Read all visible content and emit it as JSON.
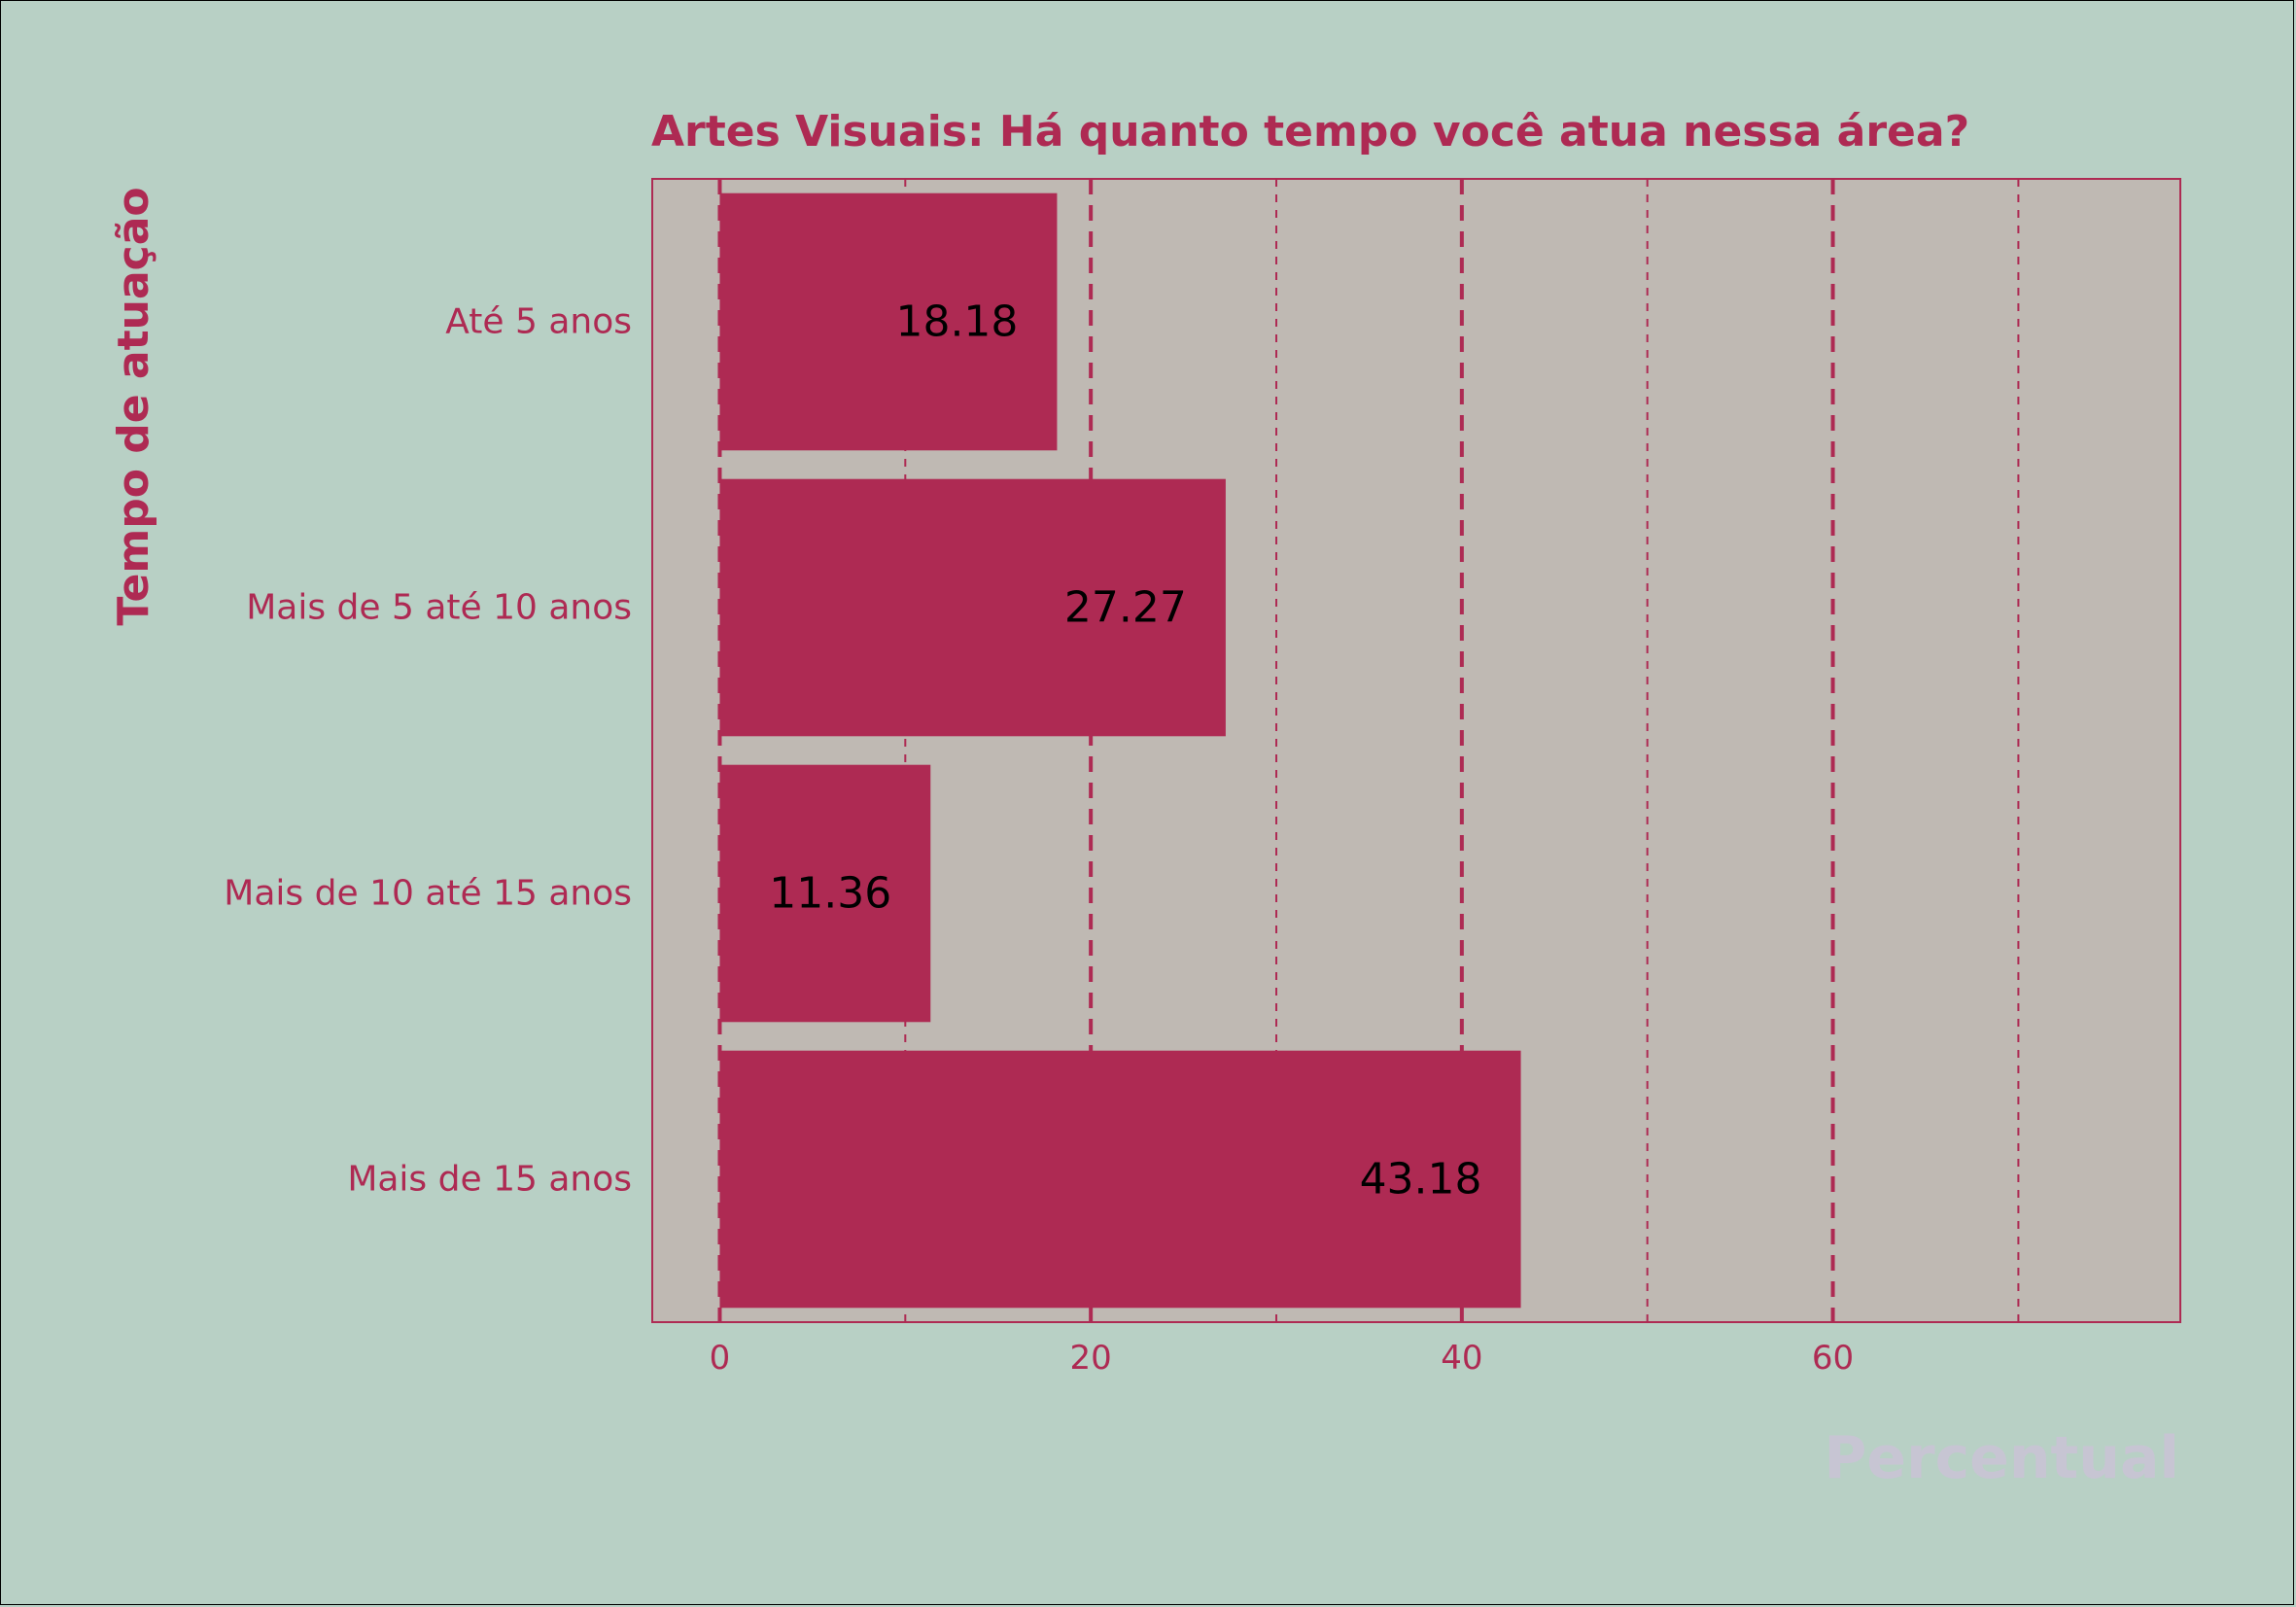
{
  "colors": {
    "background": "#b8d0c5",
    "panel": "#bfb9b3",
    "accent": "#ae2a53",
    "value_text": "#000000",
    "xlabel_text": "#c7c5d3"
  },
  "chart_data": {
    "type": "bar",
    "orientation": "horizontal",
    "title": "Artes Visuais: Há quanto tempo você atua nessa área?",
    "xlabel": "Percentual",
    "ylabel": "Tempo de atuação",
    "categories": [
      "Até 5 anos",
      "Mais de 5 até 10 anos",
      "Mais de 10 até 15 anos",
      "Mais de 15 anos"
    ],
    "values": [
      18.18,
      27.27,
      11.36,
      43.18
    ],
    "value_labels": [
      "18.18",
      "27.27",
      "11.36",
      "43.18"
    ],
    "xlim": [
      -3.64,
      78.73
    ],
    "xticks": [
      0,
      20,
      40,
      60
    ],
    "xtick_labels": [
      "0",
      "20",
      "40",
      "60"
    ],
    "minor_gridlines": [
      10,
      30,
      50,
      70
    ],
    "grid": true,
    "grid_style": "dashed",
    "legend": "none"
  }
}
